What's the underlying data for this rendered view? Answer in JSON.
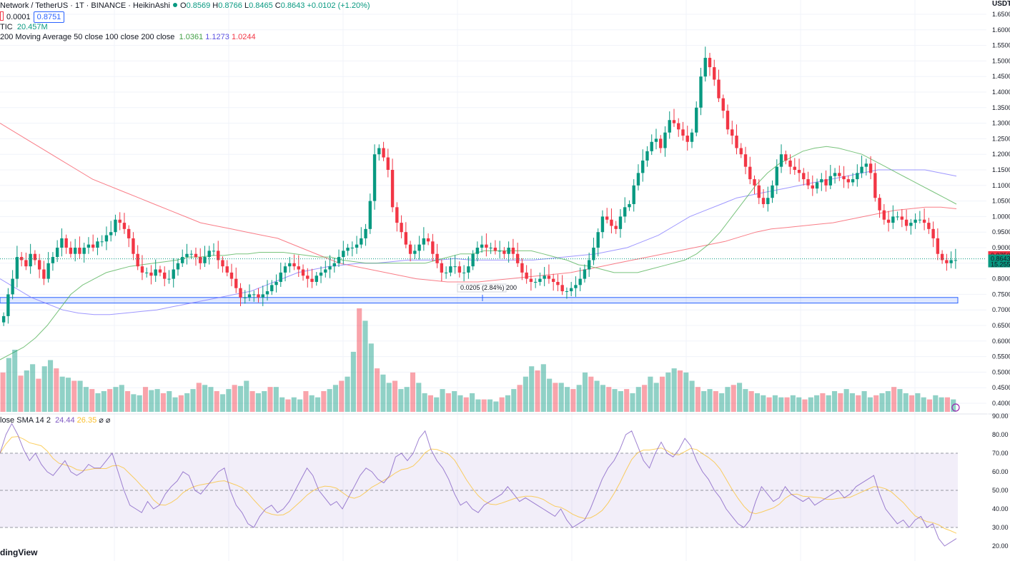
{
  "header": {
    "symbol": "Network / TetherUS · 1T · BINANCE · HeikinAshi",
    "o_label": "O",
    "o": "0.8569",
    "h_label": "H",
    "h": "0.8766",
    "l_label": "L",
    "l": "0.8465",
    "c_label": "C",
    "c": "0.8643",
    "change": "+0.0102 (+1.20%)",
    "spread": "0.0001",
    "ask": "0.8751",
    "vol_label": "TIC",
    "vol_value": "20.457M",
    "ma_label": "200 Moving Average 50 close 100 close 200 close",
    "ma50": "1.0361",
    "ma100": "1.1273",
    "ma200": "1.0244",
    "rsi_label": "lose SMA 14 2",
    "rsi": "24.44",
    "rsi_ma": "26.35",
    "rsi_extra": "⌀ ⌀",
    "currency": "USDT",
    "brand": "dingView",
    "measure_label": "0.0205 (2.84%) 200",
    "price_tag": "0.8750",
    "price_tag2": "0.8643",
    "price_tag2_sub": "15.255",
    "colors": {
      "up": "#089981",
      "down": "#f23645",
      "ma50": "#4caf50",
      "ma100": "#7e74ff",
      "ma200": "#f7525f",
      "rsi": "#7e57c2",
      "rsi_ma": "#fbc02d",
      "zone": "#2962ff"
    }
  },
  "chart_data": [
    {
      "type": "candlestick",
      "title": "",
      "yticks": [
        "1.6500",
        "1.6000",
        "1.5500",
        "1.5000",
        "1.4500",
        "1.4000",
        "1.3500",
        "1.3000",
        "1.2500",
        "1.2000",
        "1.1500",
        "1.1000",
        "1.0500",
        "1.0000",
        "0.9500",
        "0.9000",
        "0.8500",
        "0.8000",
        "0.7500",
        "0.7000",
        "0.6500",
        "0.6000",
        "0.5500",
        "0.5000",
        "0.4500",
        "0.4000"
      ],
      "ylim": [
        0.38,
        1.66
      ],
      "support_zone": [
        0.722,
        0.74
      ],
      "close_series": [
        0.68,
        0.75,
        0.8,
        0.87,
        0.86,
        0.84,
        0.88,
        0.86,
        0.83,
        0.8,
        0.85,
        0.87,
        0.9,
        0.93,
        0.9,
        0.88,
        0.9,
        0.88,
        0.9,
        0.91,
        0.9,
        0.92,
        0.92,
        0.94,
        0.95,
        0.99,
        0.98,
        0.96,
        0.93,
        0.88,
        0.84,
        0.82,
        0.82,
        0.81,
        0.83,
        0.82,
        0.8,
        0.8,
        0.83,
        0.85,
        0.87,
        0.88,
        0.88,
        0.87,
        0.85,
        0.87,
        0.89,
        0.89,
        0.86,
        0.84,
        0.82,
        0.8,
        0.77,
        0.74,
        0.74,
        0.75,
        0.75,
        0.74,
        0.75,
        0.76,
        0.78,
        0.79,
        0.82,
        0.84,
        0.85,
        0.84,
        0.83,
        0.81,
        0.8,
        0.79,
        0.81,
        0.82,
        0.83,
        0.84,
        0.85,
        0.87,
        0.89,
        0.9,
        0.9,
        0.91,
        0.93,
        0.96,
        1.05,
        1.2,
        1.22,
        1.19,
        1.15,
        1.03,
        0.98,
        0.95,
        0.91,
        0.88,
        0.89,
        0.91,
        0.93,
        0.92,
        0.88,
        0.85,
        0.82,
        0.82,
        0.84,
        0.84,
        0.82,
        0.82,
        0.84,
        0.88,
        0.9,
        0.91,
        0.9,
        0.9,
        0.89,
        0.89,
        0.88,
        0.9,
        0.88,
        0.85,
        0.82,
        0.8,
        0.79,
        0.79,
        0.8,
        0.81,
        0.8,
        0.79,
        0.78,
        0.76,
        0.76,
        0.77,
        0.78,
        0.8,
        0.83,
        0.86,
        0.9,
        0.95,
        1.0,
        0.99,
        0.97,
        0.96,
        1.0,
        1.03,
        1.04,
        1.1,
        1.14,
        1.18,
        1.21,
        1.24,
        1.25,
        1.22,
        1.27,
        1.31,
        1.3,
        1.28,
        1.26,
        1.24,
        1.27,
        1.35,
        1.45,
        1.51,
        1.48,
        1.44,
        1.38,
        1.34,
        1.28,
        1.26,
        1.22,
        1.2,
        1.16,
        1.12,
        1.1,
        1.06,
        1.04,
        1.06,
        1.1,
        1.16,
        1.2,
        1.18,
        1.16,
        1.15,
        1.14,
        1.12,
        1.1,
        1.09,
        1.11,
        1.12,
        1.1,
        1.13,
        1.14,
        1.13,
        1.12,
        1.11,
        1.12,
        1.14,
        1.16,
        1.17,
        1.14,
        1.06,
        1.02,
        0.99,
        0.98,
        1.0,
        1.0,
        0.99,
        0.97,
        0.98,
        0.99,
        0.99,
        0.98,
        0.96,
        0.93,
        0.88,
        0.86,
        0.85,
        0.86,
        0.86
      ],
      "ma50": [
        0.54,
        0.56,
        0.58,
        0.61,
        0.65,
        0.7,
        0.75,
        0.78,
        0.8,
        0.82,
        0.83,
        0.84,
        0.845,
        0.85,
        0.855,
        0.86,
        0.87,
        0.87,
        0.875,
        0.875,
        0.88,
        0.88,
        0.885,
        0.885,
        0.885,
        0.88,
        0.875,
        0.87,
        0.87,
        0.86,
        0.855,
        0.85,
        0.85,
        0.85,
        0.85,
        0.85,
        0.85,
        0.86,
        0.87,
        0.88,
        0.88,
        0.89,
        0.89,
        0.89,
        0.89,
        0.89,
        0.88,
        0.87,
        0.86,
        0.845,
        0.84,
        0.83,
        0.82,
        0.82,
        0.82,
        0.83,
        0.84,
        0.85,
        0.86,
        0.88,
        0.91,
        0.95,
        1.0,
        1.05,
        1.1,
        1.14,
        1.17,
        1.19,
        1.21,
        1.22,
        1.225,
        1.22,
        1.21,
        1.2,
        1.18,
        1.16,
        1.14,
        1.12,
        1.1,
        1.08,
        1.06,
        1.04
      ],
      "ma100": [
        0.8,
        0.77,
        0.74,
        0.72,
        0.7,
        0.69,
        0.685,
        0.685,
        0.69,
        0.695,
        0.7,
        0.71,
        0.72,
        0.73,
        0.74,
        0.75,
        0.76,
        0.78,
        0.8,
        0.82,
        0.83,
        0.84,
        0.845,
        0.85,
        0.85,
        0.855,
        0.86,
        0.86,
        0.86,
        0.865,
        0.86,
        0.86,
        0.86,
        0.86,
        0.86,
        0.865,
        0.87,
        0.875,
        0.88,
        0.89,
        0.9,
        0.92,
        0.94,
        0.97,
        1.0,
        1.02,
        1.04,
        1.06,
        1.07,
        1.08,
        1.09,
        1.1,
        1.11,
        1.12,
        1.13,
        1.14,
        1.15,
        1.15,
        1.15,
        1.15,
        1.14,
        1.13
      ],
      "ma200": [
        1.3,
        1.27,
        1.24,
        1.21,
        1.18,
        1.15,
        1.12,
        1.1,
        1.08,
        1.06,
        1.04,
        1.02,
        1.0,
        0.98,
        0.97,
        0.96,
        0.95,
        0.94,
        0.93,
        0.91,
        0.89,
        0.87,
        0.85,
        0.84,
        0.83,
        0.82,
        0.81,
        0.8,
        0.795,
        0.79,
        0.79,
        0.79,
        0.795,
        0.8,
        0.805,
        0.81,
        0.815,
        0.82,
        0.83,
        0.84,
        0.85,
        0.86,
        0.87,
        0.88,
        0.89,
        0.9,
        0.91,
        0.92,
        0.935,
        0.95,
        0.96,
        0.965,
        0.97,
        0.975,
        0.98,
        0.99,
        1.0,
        1.01,
        1.02,
        1.025,
        1.03,
        1.03,
        1.025
      ]
    },
    {
      "type": "bar",
      "title": "",
      "volume": [
        38,
        52,
        60,
        35,
        40,
        46,
        32,
        44,
        50,
        42,
        34,
        33,
        30,
        30,
        24,
        22,
        18,
        20,
        22,
        24,
        26,
        20,
        17,
        16,
        24,
        21,
        22,
        18,
        20,
        14,
        16,
        18,
        22,
        28,
        26,
        24,
        20,
        17,
        22,
        26,
        25,
        30,
        20,
        18,
        20,
        24,
        24,
        14,
        12,
        14,
        12,
        20,
        16,
        14,
        20,
        22,
        26,
        30,
        34,
        58,
        100,
        88,
        66,
        42,
        36,
        28,
        30,
        22,
        24,
        38,
        28,
        18,
        16,
        14,
        22,
        18,
        20,
        16,
        14,
        18,
        12,
        12,
        12,
        10,
        14,
        16,
        22,
        26,
        34,
        44,
        40,
        46,
        32,
        28,
        28,
        24,
        22,
        26,
        38,
        34,
        30,
        26,
        24,
        22,
        20,
        22,
        18,
        24,
        26,
        34,
        28,
        34,
        38,
        42,
        40,
        38,
        30,
        24,
        20,
        22,
        20,
        18,
        24,
        26,
        28,
        22,
        20,
        18,
        16,
        14,
        16,
        14,
        14,
        16,
        14,
        12,
        14,
        16,
        18,
        16,
        20,
        18,
        22,
        18,
        16,
        20,
        14,
        16,
        18,
        20,
        24,
        22,
        18,
        16,
        18,
        14,
        12,
        16,
        14,
        14,
        12
      ],
      "yticks": [
        "90.00",
        "80.00",
        "70.00",
        "60.00",
        "50.00",
        "40.00",
        "30.00",
        "20.00"
      ]
    },
    {
      "type": "line",
      "title": "",
      "rsi": [
        70,
        80,
        86,
        80,
        72,
        66,
        70,
        64,
        60,
        58,
        62,
        66,
        60,
        58,
        60,
        64,
        62,
        62,
        66,
        70,
        60,
        50,
        42,
        40,
        38,
        44,
        40,
        42,
        48,
        52,
        55,
        60,
        58,
        50,
        48,
        52,
        56,
        60,
        62,
        50,
        42,
        38,
        32,
        30,
        36,
        40,
        42,
        38,
        40,
        44,
        50,
        56,
        62,
        58,
        50,
        46,
        42,
        44,
        40,
        46,
        52,
        58,
        62,
        60,
        56,
        54,
        58,
        68,
        70,
        66,
        70,
        78,
        82,
        72,
        66,
        62,
        56,
        48,
        42,
        44,
        40,
        38,
        42,
        44,
        46,
        48,
        52,
        48,
        44,
        46,
        44,
        42,
        40,
        38,
        36,
        40,
        34,
        30,
        32,
        34,
        40,
        48,
        56,
        62,
        66,
        72,
        80,
        82,
        74,
        66,
        62,
        70,
        76,
        70,
        68,
        72,
        78,
        74,
        66,
        60,
        56,
        50,
        46,
        40,
        36,
        32,
        30,
        34,
        44,
        52,
        48,
        44,
        46,
        52,
        48,
        46,
        44,
        46,
        42,
        44,
        46,
        48,
        50,
        46,
        48,
        52,
        54,
        56,
        58,
        48,
        40,
        36,
        32,
        34,
        30,
        34,
        36,
        30,
        32,
        24,
        20,
        22,
        24
      ]
    }
  ]
}
